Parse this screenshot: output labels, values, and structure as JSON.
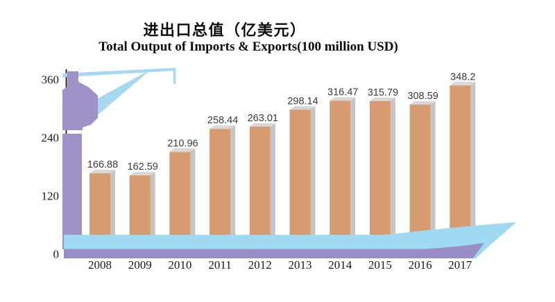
{
  "title_cn": "进出口总值（亿美元）",
  "title_en": "Total Output of Imports & Exports(100 million USD)",
  "chart_data": {
    "type": "bar",
    "title": "进出口总值（亿美元）",
    "subtitle": "Total Output of Imports & Exports(100 million USD)",
    "categories": [
      "2008",
      "2009",
      "2010",
      "2011",
      "2012",
      "2013",
      "2014",
      "2015",
      "2016",
      "2017"
    ],
    "values": [
      166.88,
      162.59,
      210.96,
      258.44,
      263.01,
      298.14,
      316.47,
      315.79,
      308.59,
      348.2
    ],
    "value_labels": [
      "166.88",
      "162.59",
      "210.96",
      "258.44",
      "263.01",
      "298.14",
      "316.47",
      "315.79",
      "308.59",
      "348.2"
    ],
    "xlabel": "",
    "ylabel": "",
    "y_ticks": [
      0,
      120,
      240,
      360
    ],
    "ylim": [
      0,
      380
    ],
    "grid": false,
    "legend": false,
    "bar_style": "3d-extruded",
    "decorations": [
      "harbor-crane-illustration",
      "sea-wave-blue",
      "sea-wave-purple"
    ]
  },
  "colors": {
    "bar_face": "#d79b71",
    "bar_side": "#c5c5c5",
    "bar_top": "#d7d7d7",
    "crane_blue": "#a6d8f0",
    "wave_blue": "#9fd9f2",
    "wave_purple": "#998fc6",
    "mast_purple": "#9e92c8",
    "axis": "#1a1a1a",
    "value_text": "#3a3a3a",
    "tick_text": "#1a1a1a"
  }
}
